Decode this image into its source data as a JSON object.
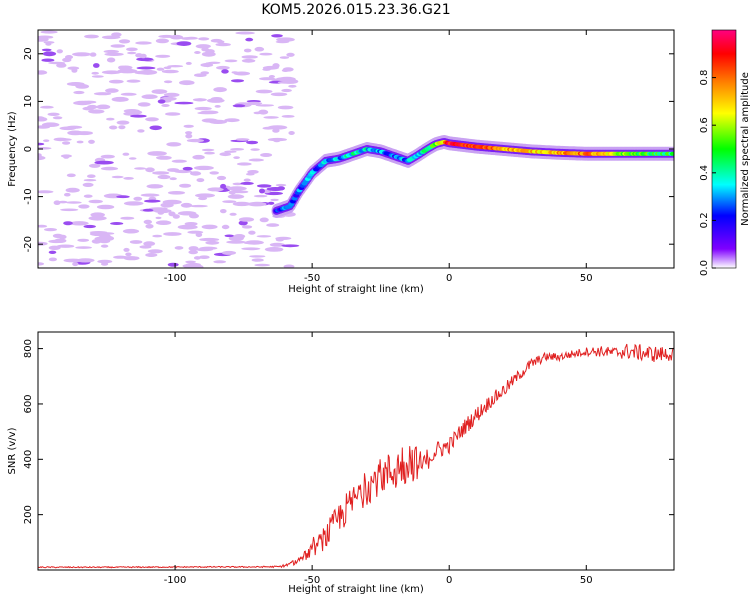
{
  "title": "KOM5.2026.015.23.36.G21",
  "chart_data": [
    {
      "type": "heatmap",
      "name": "spectrogram",
      "xlabel": "Height of straight line (km)",
      "ylabel": "Frequency (Hz)",
      "xlim": [
        -150,
        82
      ],
      "ylim": [
        -25,
        25
      ],
      "xticks": [
        -100,
        -50,
        0,
        50
      ],
      "xtick_labels": [
        "-100",
        "-50",
        "0",
        "50"
      ],
      "yticks": [
        -20,
        -10,
        0,
        10,
        20
      ],
      "ytick_labels": [
        "-20",
        "-10",
        "0",
        "10",
        "20"
      ],
      "ridge_x": [
        -63,
        -58,
        -55,
        -50,
        -45,
        -40,
        -35,
        -30,
        -25,
        -20,
        -15,
        -12,
        -8,
        -5,
        -2,
        0,
        10,
        20,
        30,
        40,
        50,
        60,
        70,
        82
      ],
      "ridge_y": [
        -13,
        -12,
        -9,
        -5,
        -2.5,
        -2,
        -1,
        0,
        -0.5,
        -1.5,
        -2.5,
        -1.5,
        0,
        1,
        1.5,
        1.2,
        0.5,
        0,
        -0.5,
        -0.8,
        -1,
        -1,
        -1,
        -1
      ],
      "ridge_amplitude": [
        0.2,
        0.25,
        0.25,
        0.28,
        0.3,
        0.32,
        0.38,
        0.35,
        0.3,
        0.25,
        0.3,
        0.32,
        0.4,
        0.55,
        0.7,
        0.9,
        0.85,
        0.75,
        0.7,
        0.72,
        0.8,
        0.6,
        0.5,
        0.45
      ],
      "noise_region_x": [
        -150,
        -63
      ],
      "colorbar": {
        "label": "Normalized spectral amplitude",
        "range": [
          0,
          1
        ],
        "ticks": [
          "0.0",
          "0.2",
          "0.4",
          "0.6",
          "0.8"
        ],
        "tick_values": [
          0,
          0.2,
          0.4,
          0.6,
          0.8
        ]
      }
    },
    {
      "type": "line",
      "name": "snr",
      "xlabel": "Height of straight line (km)",
      "ylabel": "SNR (v/v)",
      "xlim": [
        -150,
        82
      ],
      "ylim": [
        0,
        860
      ],
      "xticks": [
        -100,
        -50,
        0,
        50
      ],
      "xtick_labels": [
        "-100",
        "-50",
        "0",
        "50"
      ],
      "yticks": [
        200,
        400,
        600,
        800
      ],
      "ytick_labels": [
        "200",
        "400",
        "600",
        "800"
      ],
      "color": "#e02020",
      "x": [
        -150,
        -120,
        -90,
        -70,
        -62,
        -58,
        -55,
        -50,
        -45,
        -40,
        -35,
        -30,
        -25,
        -20,
        -15,
        -10,
        -5,
        0,
        5,
        10,
        15,
        20,
        25,
        30,
        35,
        40,
        45,
        50,
        55,
        60,
        65,
        70,
        75,
        82
      ],
      "y": [
        10,
        10,
        11,
        11,
        12,
        20,
        35,
        70,
        120,
        190,
        250,
        300,
        340,
        360,
        400,
        380,
        430,
        450,
        510,
        560,
        610,
        650,
        700,
        745,
        770,
        770,
        780,
        790,
        790,
        785,
        790,
        785,
        780,
        780
      ],
      "noise_amplitude": [
        2,
        2,
        2,
        2,
        3,
        8,
        12,
        25,
        45,
        60,
        60,
        65,
        65,
        80,
        90,
        45,
        35,
        30,
        30,
        30,
        25,
        25,
        20,
        20,
        15,
        15,
        15,
        15,
        20,
        20,
        30,
        30,
        30,
        25
      ]
    }
  ]
}
